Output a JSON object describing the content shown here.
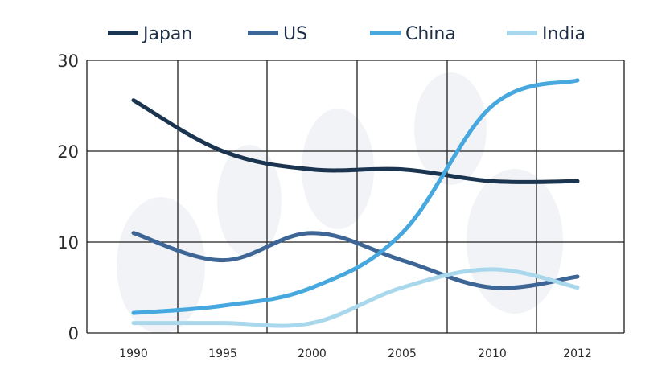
{
  "chart_data": {
    "type": "line",
    "x": [
      1990,
      1995,
      2000,
      2005,
      2010,
      2012
    ],
    "x_tick_labels": [
      "1990",
      "1995",
      "2000",
      "2005",
      "2010",
      "2012"
    ],
    "y_tick_labels": [
      "30",
      "20",
      "10",
      "0"
    ],
    "ylim": [
      0,
      30
    ],
    "grid": true,
    "legend_position": "top",
    "series": [
      {
        "name": "Japan",
        "color": "#1b3550",
        "values": [
          25.6,
          20,
          18,
          18,
          16.7,
          16.7
        ]
      },
      {
        "name": "US",
        "color": "#3d6696",
        "values": [
          11,
          8,
          11,
          8,
          5,
          6.2
        ]
      },
      {
        "name": "China",
        "color": "#46a8de",
        "values": [
          2.2,
          3,
          5,
          11,
          25,
          27.8
        ]
      },
      {
        "name": "India",
        "color": "#a9d8ec",
        "values": [
          1.1,
          1.1,
          1.1,
          5,
          7,
          5
        ]
      }
    ]
  }
}
